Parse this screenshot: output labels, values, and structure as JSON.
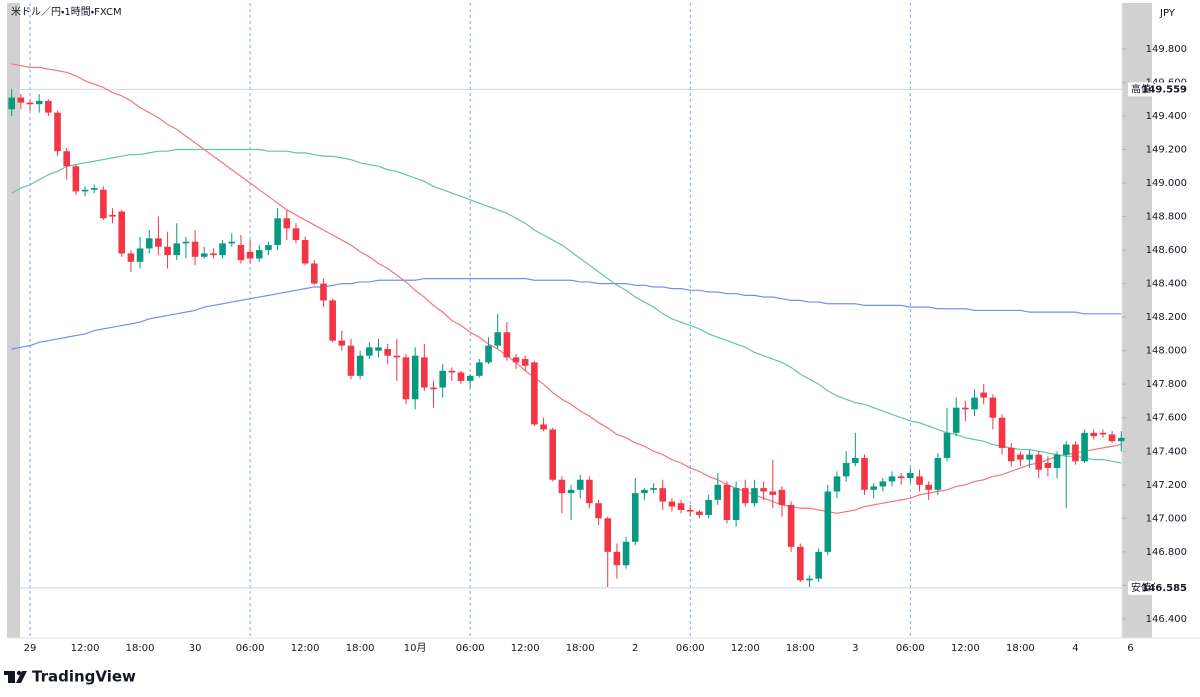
{
  "chart_data": {
    "type": "candlestick",
    "title": "米ドル／円・1時間・FXCM",
    "currency": "JPY",
    "up_color": "#089981",
    "down_color": "#f23645",
    "categories": [
      null,
      null,
      "29",
      null,
      null,
      null,
      null,
      null,
      "12:00",
      null,
      null,
      null,
      null,
      null,
      "18:00",
      null,
      null,
      null,
      null,
      null,
      "30",
      null,
      null,
      null,
      null,
      null,
      "06:00",
      null,
      null,
      null,
      null,
      null,
      "12:00",
      null,
      null,
      null,
      null,
      null,
      "18:00",
      null,
      null,
      null,
      null,
      null,
      "10月",
      null,
      null,
      null,
      null,
      null,
      "06:00",
      null,
      null,
      null,
      null,
      null,
      "12:00",
      null,
      null,
      null,
      null,
      null,
      "18:00",
      null,
      null,
      null,
      null,
      null,
      "2",
      null,
      null,
      null,
      null,
      null,
      "06:00",
      null,
      null,
      null,
      null,
      null,
      "12:00",
      null,
      null,
      null,
      null,
      null,
      "18:00",
      null,
      null,
      null,
      null,
      null,
      "3",
      null,
      null,
      null,
      null,
      null,
      "06:00",
      null,
      null,
      null,
      null,
      null,
      "12:00",
      null,
      null,
      null,
      null,
      null,
      "18:00",
      null,
      null,
      null,
      null,
      null,
      "4",
      null,
      null,
      null,
      null,
      null,
      "6"
    ],
    "open": [
      149.44,
      149.51,
      149.48,
      149.47,
      149.49,
      149.42,
      149.19,
      149.1,
      148.95,
      148.96,
      148.96,
      148.81,
      148.83,
      148.58,
      148.53,
      148.61,
      148.67,
      148.62,
      148.57,
      148.64,
      148.65,
      148.56,
      148.58,
      148.57,
      148.64,
      148.63,
      148.59,
      148.55,
      148.6,
      148.63,
      148.79,
      148.73,
      148.66,
      148.52,
      148.4,
      148.3,
      148.06,
      148.03,
      147.85,
      147.97,
      148.0,
      148.01,
      147.97,
      147.96,
      147.71,
      147.96,
      147.78,
      147.78,
      147.88,
      147.87,
      147.82,
      147.85,
      147.93,
      148.03,
      148.11,
      147.96,
      147.95,
      147.93,
      147.56,
      147.53,
      147.23,
      147.15,
      147.17,
      147.23,
      147.09,
      147.0,
      146.8,
      146.72,
      146.86,
      147.15,
      147.17,
      147.18,
      147.1,
      147.09,
      147.05,
      147.04,
      147.02,
      147.11,
      147.2,
      146.99,
      147.18,
      147.09,
      147.18,
      147.16,
      147.17,
      147.08,
      146.83,
      146.63,
      146.64,
      146.8,
      147.16,
      147.25,
      147.33,
      147.36,
      147.17,
      147.19,
      147.22,
      147.25,
      147.24,
      147.25,
      147.2,
      147.17,
      147.36,
      147.51,
      147.66,
      147.65,
      147.75,
      147.72,
      147.6,
      147.42,
      147.38,
      147.35,
      147.38,
      147.33,
      147.3,
      147.38,
      147.44,
      147.34,
      147.51,
      147.51,
      147.5,
      147.46,
      null
    ],
    "high": [
      149.56,
      149.53,
      149.5,
      149.53,
      149.5,
      149.43,
      149.21,
      149.11,
      148.98,
      148.99,
      148.98,
      148.85,
      148.84,
      148.6,
      148.68,
      148.72,
      148.8,
      148.71,
      148.76,
      148.68,
      148.72,
      148.62,
      148.61,
      148.66,
      148.7,
      148.69,
      148.66,
      148.63,
      148.65,
      148.85,
      148.84,
      148.76,
      148.68,
      148.54,
      148.43,
      148.31,
      148.12,
      148.07,
      148.0,
      148.05,
      148.07,
      148.04,
      148.07,
      147.98,
      148.02,
      148.04,
      147.82,
      147.92,
      147.9,
      147.88,
      147.86,
      147.95,
      148.08,
      148.22,
      148.17,
      147.98,
      147.97,
      147.94,
      147.6,
      147.54,
      147.25,
      147.2,
      147.26,
      147.25,
      147.11,
      147.01,
      146.85,
      146.89,
      147.24,
      147.18,
      147.21,
      147.23,
      147.12,
      147.11,
      147.08,
      147.05,
      147.14,
      147.27,
      147.22,
      147.22,
      147.23,
      147.23,
      147.22,
      147.35,
      147.19,
      147.1,
      146.85,
      146.66,
      146.82,
      147.2,
      147.28,
      147.4,
      147.51,
      147.38,
      147.21,
      147.24,
      147.28,
      147.27,
      147.3,
      147.29,
      147.22,
      147.39,
      147.66,
      147.72,
      147.7,
      147.77,
      147.8,
      147.74,
      147.62,
      147.45,
      147.4,
      147.41,
      147.4,
      147.37,
      147.4,
      147.46,
      147.46,
      147.53,
      147.53,
      147.53,
      147.52,
      147.52,
      null
    ],
    "low": [
      149.4,
      149.44,
      149.43,
      149.42,
      149.4,
      149.16,
      149.02,
      148.93,
      148.92,
      148.94,
      148.78,
      148.76,
      148.56,
      148.47,
      148.49,
      148.58,
      148.57,
      148.49,
      148.54,
      148.55,
      148.51,
      148.55,
      148.55,
      148.55,
      148.62,
      148.52,
      148.52,
      148.53,
      148.57,
      148.6,
      148.66,
      148.64,
      148.51,
      148.39,
      148.26,
      148.05,
      148.0,
      147.83,
      147.83,
      147.95,
      147.96,
      147.92,
      147.82,
      147.68,
      147.65,
      147.76,
      147.66,
      147.72,
      147.82,
      147.8,
      147.78,
      147.84,
      147.92,
      148.01,
      147.94,
      147.89,
      147.88,
      147.55,
      147.52,
      147.22,
      147.03,
      146.99,
      147.12,
      147.06,
      146.96,
      146.59,
      146.64,
      146.7,
      146.84,
      147.11,
      147.15,
      147.05,
      147.04,
      147.03,
      147.01,
      147.0,
      147.0,
      147.08,
      146.97,
      146.95,
      147.07,
      147.07,
      147.11,
      147.06,
      147.01,
      146.8,
      146.62,
      146.59,
      146.62,
      146.78,
      147.12,
      147.22,
      147.31,
      147.14,
      147.12,
      147.16,
      147.19,
      147.2,
      147.21,
      147.16,
      147.11,
      147.14,
      147.34,
      147.49,
      147.58,
      147.61,
      147.68,
      147.53,
      147.38,
      147.31,
      147.31,
      147.3,
      147.24,
      147.25,
      147.24,
      147.06,
      147.32,
      147.33,
      147.47,
      147.48,
      147.45,
      147.4,
      null
    ],
    "close": [
      149.51,
      149.48,
      149.47,
      149.49,
      149.42,
      149.19,
      149.1,
      148.95,
      148.96,
      148.97,
      148.79,
      148.8,
      148.58,
      148.53,
      148.61,
      148.67,
      148.62,
      148.57,
      148.64,
      148.65,
      148.56,
      148.58,
      148.57,
      148.64,
      148.65,
      148.54,
      148.55,
      148.6,
      148.63,
      148.79,
      148.73,
      148.66,
      148.52,
      148.4,
      148.3,
      148.06,
      148.03,
      147.85,
      147.97,
      148.02,
      148.02,
      147.97,
      147.96,
      147.71,
      147.97,
      147.78,
      147.77,
      147.88,
      147.87,
      147.82,
      147.85,
      147.93,
      148.03,
      148.11,
      147.96,
      147.93,
      147.91,
      147.56,
      147.53,
      147.23,
      147.15,
      147.17,
      147.23,
      147.09,
      147.0,
      146.8,
      146.72,
      146.86,
      147.15,
      147.17,
      147.18,
      147.1,
      147.07,
      147.05,
      147.04,
      147.02,
      147.11,
      147.2,
      146.99,
      147.18,
      147.09,
      147.18,
      147.16,
      147.14,
      147.08,
      146.83,
      146.63,
      146.64,
      146.8,
      147.16,
      147.25,
      147.33,
      147.36,
      147.17,
      147.19,
      147.22,
      147.25,
      147.24,
      147.27,
      147.2,
      147.17,
      147.36,
      147.51,
      147.66,
      147.65,
      147.72,
      147.72,
      147.6,
      147.42,
      147.34,
      147.35,
      147.38,
      147.29,
      147.3,
      147.38,
      147.44,
      147.34,
      147.51,
      147.49,
      147.5,
      147.46,
      147.48,
      null
    ],
    "lines": [
      {
        "color": "#f5737d",
        "values": [
          149.71,
          149.7,
          149.69,
          149.69,
          149.68,
          149.67,
          149.66,
          149.64,
          149.61,
          149.59,
          149.57,
          149.54,
          149.52,
          149.49,
          149.45,
          149.42,
          149.39,
          149.35,
          149.32,
          149.28,
          149.24,
          149.2,
          149.16,
          149.12,
          149.08,
          149.04,
          149.0,
          148.96,
          148.92,
          148.88,
          148.84,
          148.81,
          148.78,
          148.75,
          148.72,
          148.69,
          148.66,
          148.63,
          148.59,
          148.56,
          148.52,
          148.49,
          148.45,
          148.41,
          148.36,
          148.32,
          148.27,
          148.23,
          148.18,
          148.15,
          148.11,
          148.08,
          148.04,
          148.01,
          147.97,
          147.93,
          147.88,
          147.84,
          147.8,
          147.75,
          147.71,
          147.68,
          147.64,
          147.61,
          147.57,
          147.54,
          147.5,
          147.48,
          147.45,
          147.43,
          147.4,
          147.38,
          147.35,
          147.33,
          147.3,
          147.28,
          147.25,
          147.23,
          147.2,
          147.18,
          147.16,
          147.14,
          147.12,
          147.1,
          147.08,
          147.07,
          147.06,
          147.06,
          147.05,
          147.04,
          147.03,
          147.04,
          147.05,
          147.07,
          147.08,
          147.09,
          147.1,
          147.11,
          147.12,
          147.14,
          147.15,
          147.16,
          147.17,
          147.19,
          147.2,
          147.22,
          147.23,
          147.25,
          147.26,
          147.28,
          147.3,
          147.32,
          147.33,
          147.35,
          147.37,
          147.38,
          147.39,
          147.4,
          147.41,
          147.42,
          147.43,
          147.44,
          null
        ]
      },
      {
        "color": "#63c6a0",
        "values": [
          148.94,
          148.97,
          148.99,
          149.02,
          149.05,
          149.07,
          149.1,
          149.11,
          149.12,
          149.13,
          149.14,
          149.15,
          149.16,
          149.17,
          149.17,
          149.18,
          149.19,
          149.19,
          149.2,
          149.2,
          149.2,
          149.2,
          149.2,
          149.2,
          149.2,
          149.2,
          149.2,
          149.2,
          149.19,
          149.19,
          149.19,
          149.18,
          149.18,
          149.17,
          149.16,
          149.16,
          149.15,
          149.14,
          149.12,
          149.11,
          149.1,
          149.08,
          149.07,
          149.05,
          149.03,
          149.01,
          148.98,
          148.96,
          148.94,
          148.92,
          148.9,
          148.88,
          148.86,
          148.84,
          148.82,
          148.79,
          148.76,
          148.72,
          148.69,
          148.66,
          148.63,
          148.59,
          148.55,
          148.51,
          148.47,
          148.43,
          148.39,
          148.36,
          148.32,
          148.29,
          148.26,
          148.22,
          148.19,
          148.17,
          148.15,
          148.13,
          148.1,
          148.08,
          148.06,
          148.04,
          148.02,
          147.99,
          147.97,
          147.95,
          147.93,
          147.9,
          147.86,
          147.83,
          147.8,
          147.76,
          147.73,
          147.71,
          147.69,
          147.68,
          147.66,
          147.64,
          147.62,
          147.6,
          147.58,
          147.57,
          147.55,
          147.53,
          147.51,
          147.5,
          147.48,
          147.47,
          147.46,
          147.44,
          147.43,
          147.42,
          147.41,
          147.41,
          147.4,
          147.39,
          147.38,
          147.37,
          147.37,
          147.36,
          147.35,
          147.35,
          147.34,
          147.33,
          null
        ]
      },
      {
        "color": "#6d93e8",
        "values": [
          148.01,
          148.02,
          148.03,
          148.05,
          148.06,
          148.07,
          148.08,
          148.09,
          148.1,
          148.12,
          148.13,
          148.14,
          148.15,
          148.16,
          148.17,
          148.19,
          148.2,
          148.21,
          148.22,
          148.23,
          148.24,
          148.26,
          148.27,
          148.28,
          148.29,
          148.3,
          148.31,
          148.32,
          148.33,
          148.34,
          148.35,
          148.36,
          148.37,
          148.38,
          148.38,
          148.39,
          148.4,
          148.4,
          148.41,
          148.41,
          148.42,
          148.42,
          148.42,
          148.42,
          148.42,
          148.43,
          148.43,
          148.43,
          148.43,
          148.43,
          148.43,
          148.43,
          148.43,
          148.43,
          148.43,
          148.43,
          148.43,
          148.42,
          148.42,
          148.42,
          148.42,
          148.42,
          148.41,
          148.41,
          148.4,
          148.4,
          148.4,
          148.4,
          148.39,
          148.39,
          148.38,
          148.38,
          148.37,
          148.37,
          148.36,
          148.36,
          148.35,
          148.35,
          148.34,
          148.34,
          148.33,
          148.33,
          148.32,
          148.32,
          148.31,
          148.3,
          148.3,
          148.29,
          148.29,
          148.28,
          148.28,
          148.28,
          148.28,
          148.27,
          148.27,
          148.27,
          148.27,
          148.27,
          148.26,
          148.26,
          148.26,
          148.25,
          148.25,
          148.25,
          148.25,
          148.24,
          148.24,
          148.24,
          148.24,
          148.24,
          148.24,
          148.23,
          148.23,
          148.23,
          148.23,
          148.23,
          148.23,
          148.22,
          148.22,
          148.22,
          148.22,
          148.22,
          null
        ]
      }
    ],
    "annotations": [
      {
        "label": "高値",
        "value": 149.559
      },
      {
        "label": "安値",
        "value": 146.585
      }
    ],
    "ylim": [
      146.286,
      150.074
    ],
    "yticks": [
      {
        "value": 146.4,
        "label": "146.400"
      },
      {
        "value": 146.6,
        "label": "146.600"
      },
      {
        "value": 146.8,
        "label": "146.800"
      },
      {
        "value": 147.0,
        "label": "147.000"
      },
      {
        "value": 147.2,
        "label": "147.200"
      },
      {
        "value": 147.4,
        "label": "147.400"
      },
      {
        "value": 147.6,
        "label": "147.600"
      },
      {
        "value": 147.8,
        "label": "147.800"
      },
      {
        "value": 148.0,
        "label": "148.000"
      },
      {
        "value": 148.2,
        "label": "148.200"
      },
      {
        "value": 148.4,
        "label": "148.400"
      },
      {
        "value": 148.6,
        "label": "148.600"
      },
      {
        "value": 148.8,
        "label": "148.800"
      },
      {
        "value": 149.0,
        "label": "149.000"
      },
      {
        "value": 149.2,
        "label": "149.200"
      },
      {
        "value": 149.4,
        "label": "149.400"
      },
      {
        "value": 149.6,
        "label": "149.600"
      },
      {
        "value": 149.8,
        "label": "149.800"
      }
    ]
  },
  "branding": "TradingView"
}
